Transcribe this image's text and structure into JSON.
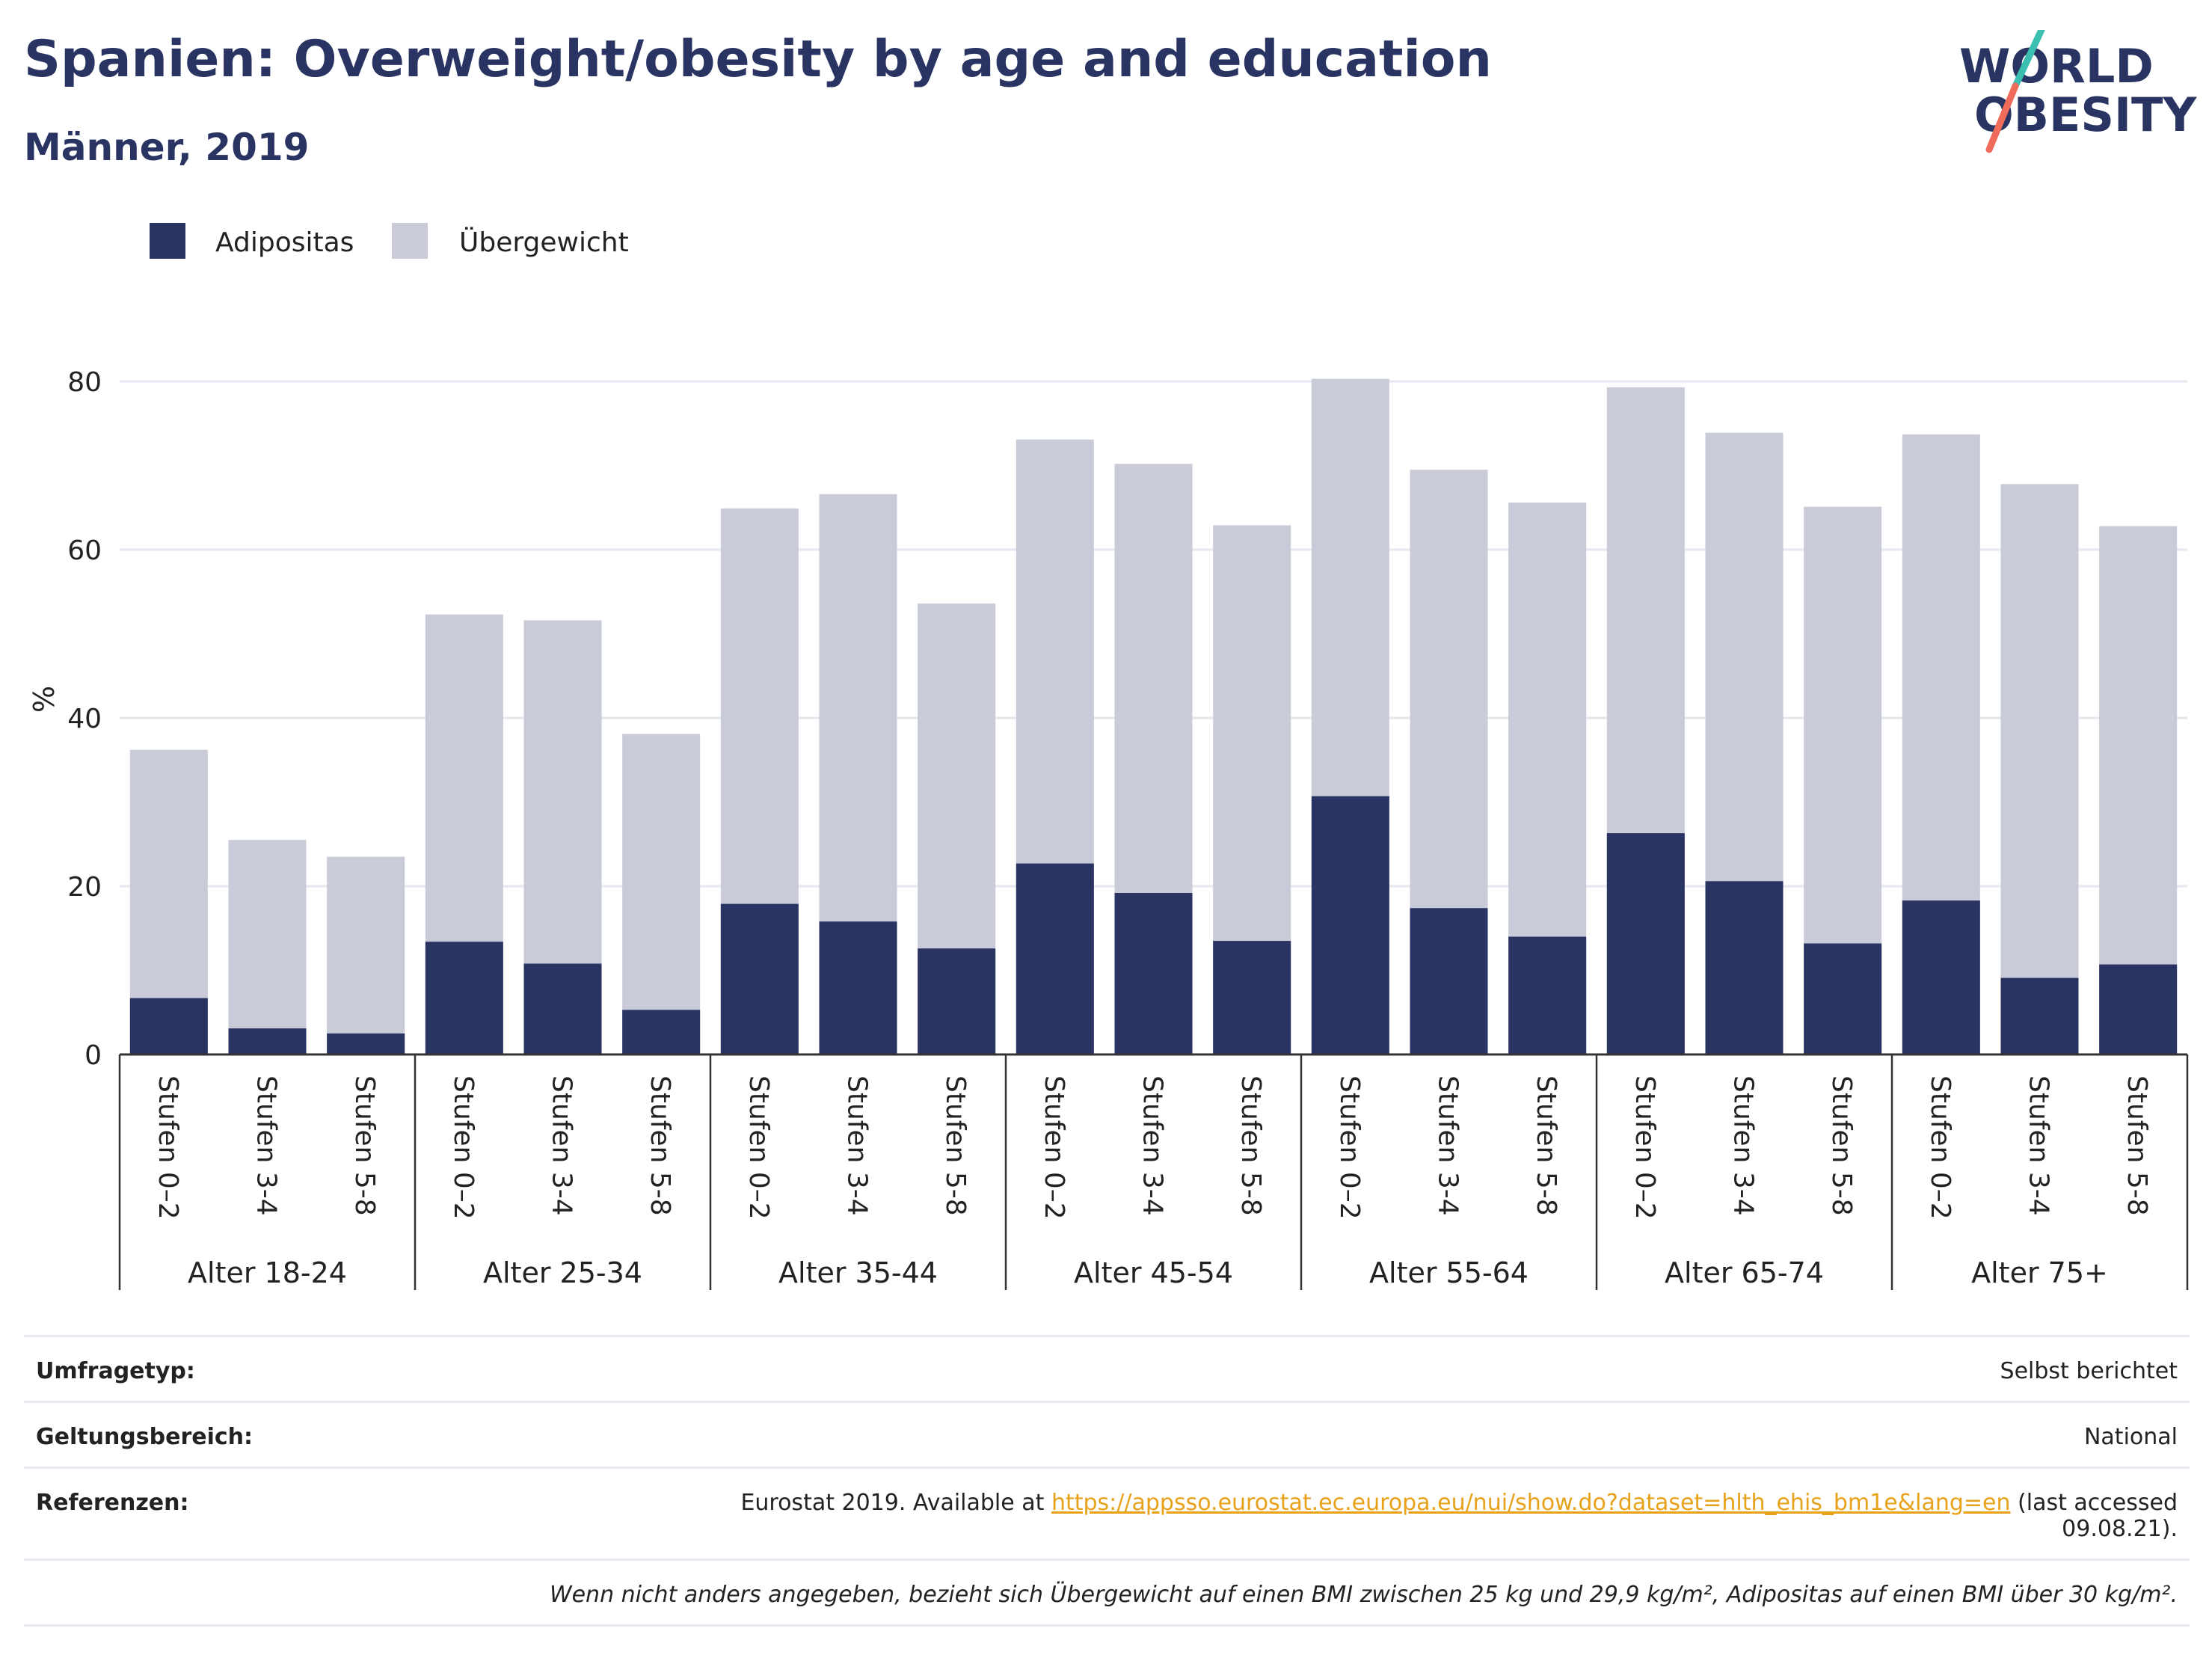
{
  "header": {
    "title": "Spanien: Overweight/obesity by age and education",
    "subtitle": "Männer, 2019",
    "logo_line1": "WORLD",
    "logo_line2": "OBESITY"
  },
  "colors": {
    "obesity": "#2a3463",
    "overweight": "#c9cbd8",
    "text": "#2a3463",
    "logo_teal": "#3bbfb0",
    "logo_coral": "#ef6c5a",
    "link": "#e8a21a"
  },
  "chart_data": {
    "type": "bar",
    "stacked": true,
    "ylabel": "%",
    "ylim": [
      0,
      80
    ],
    "yticks": [
      0,
      20,
      40,
      60,
      80
    ],
    "grid": true,
    "legend": [
      "Adipositas",
      "Übergewicht"
    ],
    "legend_position": "top-left",
    "groups": [
      {
        "label": "Alter 18-24",
        "categories": [
          "Stufen 0–2",
          "Stufen 3-4",
          "Stufen 5-8"
        ],
        "adipositas": [
          6.7,
          3.1,
          2.5
        ],
        "total": [
          36.2,
          25.5,
          23.5
        ]
      },
      {
        "label": "Alter 25-34",
        "categories": [
          "Stufen 0–2",
          "Stufen 3-4",
          "Stufen 5-8"
        ],
        "adipositas": [
          13.4,
          10.8,
          5.3
        ],
        "total": [
          52.3,
          51.6,
          38.1
        ]
      },
      {
        "label": "Alter 35-44",
        "categories": [
          "Stufen 0–2",
          "Stufen 3-4",
          "Stufen 5-8"
        ],
        "adipositas": [
          17.9,
          15.8,
          12.6
        ],
        "total": [
          64.9,
          66.6,
          53.6
        ]
      },
      {
        "label": "Alter 45-54",
        "categories": [
          "Stufen 0–2",
          "Stufen 3-4",
          "Stufen 5-8"
        ],
        "adipositas": [
          22.7,
          19.2,
          13.5
        ],
        "total": [
          73.1,
          70.2,
          62.9
        ]
      },
      {
        "label": "Alter 55-64",
        "categories": [
          "Stufen 0–2",
          "Stufen 3-4",
          "Stufen 5-8"
        ],
        "adipositas": [
          30.7,
          17.4,
          14.0
        ],
        "total": [
          80.3,
          69.5,
          65.6
        ]
      },
      {
        "label": "Alter 65-74",
        "categories": [
          "Stufen 0–2",
          "Stufen 3-4",
          "Stufen 5-8"
        ],
        "adipositas": [
          26.3,
          20.6,
          13.2
        ],
        "total": [
          79.3,
          73.9,
          65.1
        ]
      },
      {
        "label": "Alter 75+",
        "categories": [
          "Stufen 0–2",
          "Stufen 3-4",
          "Stufen 5-8"
        ],
        "adipositas": [
          18.3,
          9.1,
          10.7
        ],
        "total": [
          73.7,
          67.8,
          62.8
        ]
      }
    ]
  },
  "footer": {
    "survey_label": "Umfragetyp:",
    "survey_value": "Selbst berichtet",
    "scope_label": "Geltungsbereich:",
    "scope_value": "National",
    "ref_label": "Referenzen:",
    "ref_prefix": "Eurostat 2019. Available at",
    "ref_link": "https://appsso.eurostat.ec.europa.eu/nui/show.do?dataset=hlth_ehis_bm1e&lang=en",
    "ref_suffix": "(last accessed 09.08.21).",
    "note": "Wenn nicht anders angegeben, bezieht sich Übergewicht auf einen BMI zwischen 25 kg und 29,9 kg/m², Adipositas auf einen BMI über 30 kg/m²."
  }
}
